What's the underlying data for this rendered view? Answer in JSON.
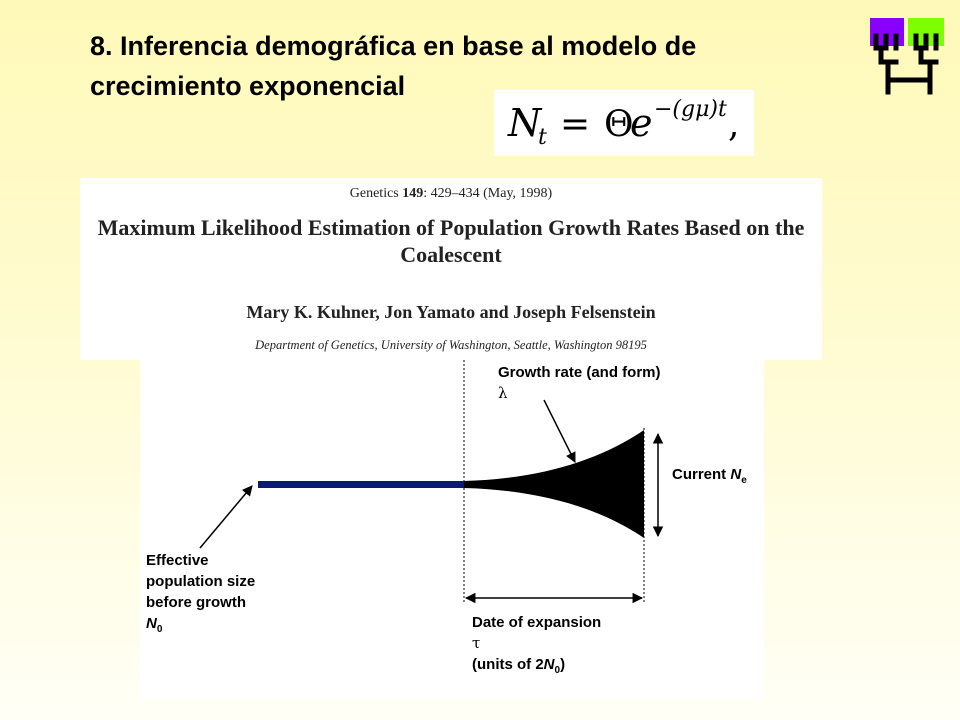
{
  "slide": {
    "title": "8. Inferencia demográfica en base al modelo de crecimiento exponencial"
  },
  "formula": {
    "lhs": "N",
    "lhs_subscript": "t",
    "equals": "=",
    "theta": "Θ",
    "base": "e",
    "exponent": "−(gμ)t",
    "trailing": ","
  },
  "paper": {
    "journal": "Genetics",
    "volume": "149",
    "pages_date": ": 429–434 (May, 1998)",
    "title": "Maximum Likelihood Estimation of Population Growth Rates Based on the Coalescent",
    "authors": "Mary K. Kuhner, Jon Yamato and Joseph Felsenstein",
    "affiliation": "Department of Genetics, University of Washington, Seattle, Washington 98195"
  },
  "diagram": {
    "growth_label": "Growth rate (and form)",
    "growth_symbol": "λ",
    "current_label": "Current ",
    "current_symbol": "N",
    "current_subscript": "e",
    "effective_line1": "Effective",
    "effective_line2": "population size",
    "effective_line3": "before growth",
    "effective_symbol": "N",
    "effective_subscript": "0",
    "date_label": "Date of expansion",
    "date_symbol": "τ",
    "units_prefix": "(units of 2",
    "units_symbol": "N",
    "units_subscript": "0",
    "units_suffix": ")"
  },
  "colors": {
    "ancestral_bar": "#0a1a6e",
    "logo_purple": "#8a00ff",
    "logo_green": "#7dff00",
    "logo_tree": "#000000"
  },
  "icons": {
    "logo": "phylogenetic-tree-logo-icon"
  }
}
